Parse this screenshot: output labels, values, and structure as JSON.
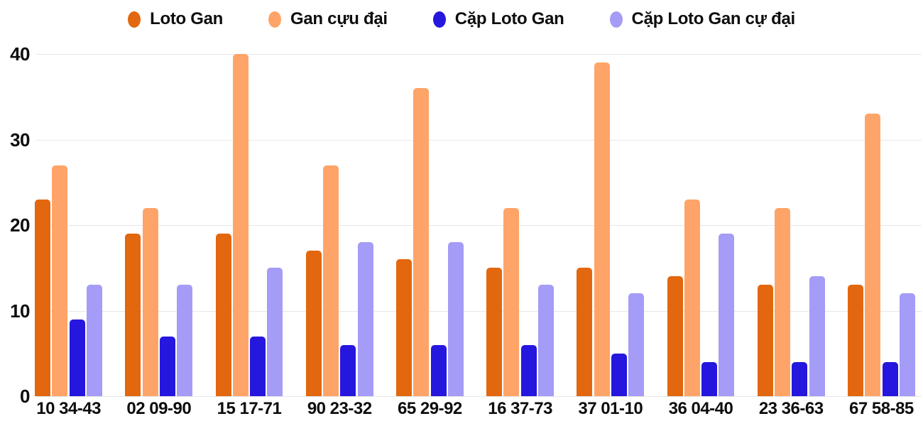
{
  "chart_data": {
    "type": "bar",
    "title": "",
    "xlabel": "",
    "ylabel": "",
    "categories": [
      "10 34-43",
      "02 09-90",
      "15 17-71",
      "90 23-32",
      "65 29-92",
      "16 37-73",
      "37 01-10",
      "36 04-40",
      "23 36-63",
      "67 58-85"
    ],
    "series": [
      {
        "name": "Loto Gan",
        "slug": "loto-gan",
        "color": "#e2670f",
        "values": [
          23,
          19,
          19,
          17,
          16,
          15,
          15,
          14,
          13,
          13
        ]
      },
      {
        "name": "Gan cựu đại",
        "slug": "gan-cuu-dai",
        "color": "#ffa468",
        "values": [
          27,
          22,
          40,
          27,
          36,
          22,
          39,
          23,
          22,
          33
        ]
      },
      {
        "name": "Cặp Loto Gan",
        "slug": "cap-loto-gan",
        "color": "#2517dd",
        "values": [
          9,
          7,
          7,
          6,
          6,
          6,
          5,
          4,
          4,
          4
        ]
      },
      {
        "name": "Cặp Loto Gan cự đại",
        "slug": "cap-loto-gan-cu-dai",
        "color": "#a49cf6",
        "values": [
          13,
          13,
          15,
          18,
          18,
          13,
          12,
          19,
          14,
          12
        ]
      }
    ],
    "ylim": [
      0,
      40
    ],
    "yticks": [
      0,
      10,
      20,
      30,
      40
    ],
    "grid": true,
    "legend_position": "top",
    "colors": {
      "background": "#ffffff",
      "gridline": "#e7e7e7",
      "text": "#0d0d0d"
    }
  }
}
